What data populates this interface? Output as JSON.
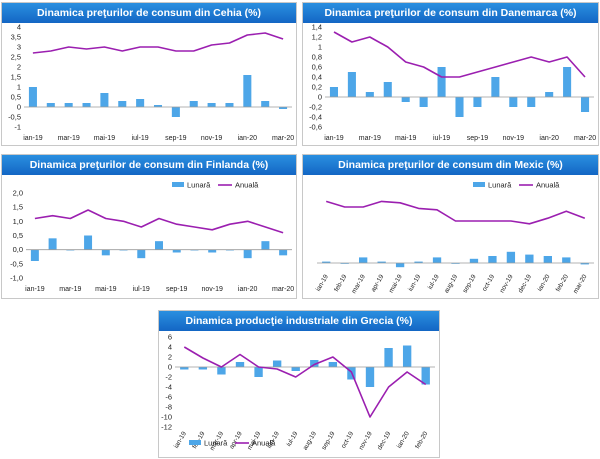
{
  "colors": {
    "bars": "#4da6e8",
    "line": "#9b1fb0",
    "title_bg": "#1a73d0",
    "axis": "#9a9a9a"
  },
  "chart_data": [
    {
      "id": "cz",
      "type": "bar+line",
      "title": "Dinamica preţurilor de consum din Cehia (%)",
      "categories": [
        "ian-19",
        "feb-19",
        "mar-19",
        "apr-19",
        "mai-19",
        "iun-19",
        "iul-19",
        "aug-19",
        "sep-19",
        "oct-19",
        "nov-19",
        "dec-19",
        "ian-20",
        "feb-20",
        "mar-20"
      ],
      "tick_labels": [
        "ian-19",
        "mar-19",
        "mai-19",
        "iul-19",
        "sep-19",
        "nov-19",
        "ian-20",
        "mar-20"
      ],
      "tick_indices": [
        0,
        2,
        4,
        6,
        8,
        10,
        12,
        14
      ],
      "xtick_rotate": false,
      "ylim": [
        -1,
        4
      ],
      "yticks": [
        "-1",
        "-0,5",
        "0",
        "0,5",
        "1",
        "1,5",
        "2",
        "2,5",
        "3",
        "3,5",
        "4"
      ],
      "legend": {
        "visible": false,
        "labels": [
          "Lunară",
          "Anuală"
        ]
      },
      "series": [
        {
          "name": "Lunară",
          "kind": "bar",
          "values": [
            1.0,
            0.2,
            0.2,
            0.2,
            0.7,
            0.3,
            0.4,
            0.1,
            -0.5,
            0.3,
            0.2,
            0.2,
            1.6,
            0.3,
            -0.1
          ]
        },
        {
          "name": "Anuală",
          "kind": "line",
          "values": [
            2.7,
            2.8,
            3.0,
            2.9,
            3.0,
            2.8,
            3.0,
            3.0,
            2.8,
            2.8,
            3.1,
            3.2,
            3.6,
            3.7,
            3.4
          ]
        }
      ]
    },
    {
      "id": "dk",
      "type": "bar+line",
      "title": "Dinamica preţurilor de consum din Danemarca (%)",
      "categories": [
        "ian-19",
        "feb-19",
        "mar-19",
        "apr-19",
        "mai-19",
        "iun-19",
        "iul-19",
        "aug-19",
        "sep-19",
        "oct-19",
        "nov-19",
        "dec-19",
        "ian-20",
        "feb-20",
        "mar-20"
      ],
      "tick_labels": [
        "ian-19",
        "mar-19",
        "mai-19",
        "iul-19",
        "sep-19",
        "nov-19",
        "ian-20",
        "mar-20"
      ],
      "tick_indices": [
        0,
        2,
        4,
        6,
        8,
        10,
        12,
        14
      ],
      "xtick_rotate": false,
      "ylim": [
        -0.6,
        1.4
      ],
      "yticks": [
        "-0,6",
        "-0,4",
        "-0,2",
        "0",
        "0,2",
        "0,4",
        "0,6",
        "0,8",
        "1",
        "1,2",
        "1,4"
      ],
      "legend": {
        "visible": false,
        "labels": [
          "Lunară",
          "Anuală"
        ]
      },
      "series": [
        {
          "name": "Lunară",
          "kind": "bar",
          "values": [
            0.2,
            0.5,
            0.1,
            0.3,
            -0.1,
            -0.2,
            0.6,
            -0.4,
            -0.2,
            0.4,
            -0.2,
            -0.2,
            0.1,
            0.6,
            -0.3
          ]
        },
        {
          "name": "Anuală",
          "kind": "line",
          "values": [
            1.3,
            1.1,
            1.2,
            1.0,
            0.7,
            0.6,
            0.4,
            0.4,
            0.5,
            0.6,
            0.7,
            0.8,
            0.7,
            0.8,
            0.4
          ]
        }
      ]
    },
    {
      "id": "fi",
      "type": "bar+line",
      "title": "Dinamica preţurilor de consum din Finlanda (%)",
      "categories": [
        "ian-19",
        "feb-19",
        "mar-19",
        "apr-19",
        "mai-19",
        "iun-19",
        "iul-19",
        "aug-19",
        "sep-19",
        "oct-19",
        "nov-19",
        "dec-19",
        "ian-20",
        "feb-20",
        "mar-20"
      ],
      "tick_labels": [
        "ian-19",
        "mar-19",
        "mai-19",
        "iul-19",
        "sep-19",
        "nov-19",
        "ian-20",
        "mar-20"
      ],
      "tick_indices": [
        0,
        2,
        4,
        6,
        8,
        10,
        12,
        14
      ],
      "xtick_rotate": false,
      "ylim": [
        -1,
        2
      ],
      "yticks": [
        "-1,0",
        "-0,5",
        "0,0",
        "0,5",
        "1,0",
        "1,5",
        "2,0"
      ],
      "legend": {
        "visible": true,
        "labels": [
          "Lunară",
          "Anuală"
        ]
      },
      "series": [
        {
          "name": "Lunară",
          "kind": "bar",
          "values": [
            -0.4,
            0.4,
            0.0,
            0.5,
            -0.2,
            0.0,
            -0.3,
            0.3,
            -0.1,
            0.0,
            -0.1,
            0.0,
            -0.3,
            0.3,
            -0.2
          ]
        },
        {
          "name": "Anuală",
          "kind": "line",
          "values": [
            1.1,
            1.2,
            1.1,
            1.4,
            1.1,
            1.0,
            0.8,
            1.1,
            0.9,
            0.8,
            0.7,
            0.9,
            1.0,
            0.8,
            0.6
          ]
        }
      ]
    },
    {
      "id": "mx",
      "type": "bar+line",
      "title": "Dinamica preţurilor de consum din Mexic (%)",
      "categories": [
        "ian-19",
        "feb-19",
        "mar-19",
        "apr-19",
        "mai-19",
        "iun-19",
        "iul-19",
        "aug-19",
        "sep-19",
        "oct-19",
        "nov-19",
        "dec-19",
        "ian-20",
        "feb-20",
        "mar-20"
      ],
      "tick_labels": [
        "ian-19",
        "feb-19",
        "mar-19",
        "apr-19",
        "mai-19",
        "iun-19",
        "iul-19",
        "aug-19",
        "sep-19",
        "oct-19",
        "nov-19",
        "dec-19",
        "ian-20",
        "feb-20",
        "mar-20"
      ],
      "tick_indices": [
        0,
        1,
        2,
        3,
        4,
        5,
        6,
        7,
        8,
        9,
        10,
        11,
        12,
        13,
        14
      ],
      "xtick_rotate": true,
      "ylim": [
        -0.5,
        5
      ],
      "yticks": [],
      "legend": {
        "visible": true,
        "labels": [
          "Lunară",
          "Anuală"
        ]
      },
      "series": [
        {
          "name": "Lunară",
          "kind": "bar",
          "values": [
            0.1,
            0.0,
            0.4,
            0.1,
            -0.3,
            0.1,
            0.4,
            0.0,
            0.3,
            0.5,
            0.8,
            0.6,
            0.5,
            0.4,
            -0.1
          ]
        },
        {
          "name": "Anuală",
          "kind": "line",
          "values": [
            4.4,
            4.0,
            4.0,
            4.4,
            4.3,
            3.9,
            3.8,
            3.0,
            3.0,
            3.0,
            3.0,
            2.8,
            3.2,
            3.7,
            3.2
          ]
        }
      ]
    },
    {
      "id": "gr",
      "type": "bar+line",
      "title": "Dinamica producţie industriale din Grecia (%)",
      "categories": [
        "ian-19",
        "feb-19",
        "mar-19",
        "apr-19",
        "mai-19",
        "iun-19",
        "iul-19",
        "aug-19",
        "sep-19",
        "oct-19",
        "nov-19",
        "dec-19",
        "ian-20",
        "feb-20"
      ],
      "tick_labels": [
        "ian-19",
        "feb-19",
        "mar-19",
        "apr-19",
        "mai-19",
        "iun-19",
        "iul-19",
        "aug-19",
        "sep-19",
        "oct-19",
        "nov-19",
        "dec-19",
        "ian-20",
        "feb-20"
      ],
      "tick_indices": [
        0,
        1,
        2,
        3,
        4,
        5,
        6,
        7,
        8,
        9,
        10,
        11,
        12,
        13
      ],
      "xtick_rotate": true,
      "ylim": [
        -12,
        6
      ],
      "yticks": [
        "-12",
        "-10",
        "-8",
        "-6",
        "-4",
        "-2",
        "0",
        "2",
        "4",
        "6"
      ],
      "legend": {
        "visible": true,
        "labels": [
          "Lunară",
          "Anuală"
        ]
      },
      "series": [
        {
          "name": "Lunară",
          "kind": "bar",
          "values": [
            -0.5,
            -0.5,
            -1.5,
            1.0,
            -2.0,
            1.3,
            -0.8,
            1.4,
            1.0,
            -2.5,
            -4.0,
            3.8,
            4.3,
            -3.5
          ]
        },
        {
          "name": "Anuală",
          "kind": "line",
          "values": [
            4.0,
            1.8,
            0.0,
            2.5,
            0.0,
            -0.4,
            -2.0,
            0.5,
            2.0,
            -1.0,
            -10.0,
            -4.0,
            -1.0,
            -3.5
          ]
        }
      ]
    }
  ]
}
